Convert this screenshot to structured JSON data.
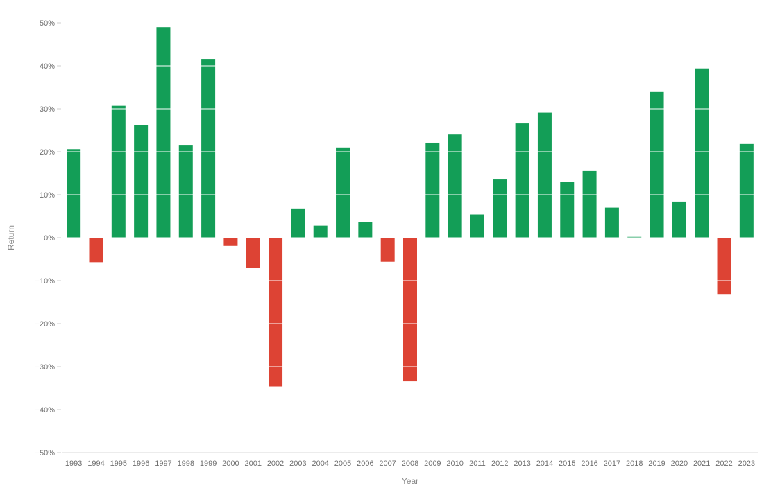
{
  "chart_data": {
    "type": "bar",
    "title": "",
    "xlabel": "Year",
    "ylabel": "Return",
    "ylim": [
      -50,
      50
    ],
    "y_ticks": [
      50,
      40,
      30,
      20,
      10,
      0,
      -10,
      -20,
      -30,
      -40,
      -50
    ],
    "y_tick_labels": [
      "50%",
      "40%",
      "30%",
      "20%",
      "10%",
      "0%",
      "−10%",
      "−20%",
      "−30%",
      "−40%",
      "−50%"
    ],
    "grid": "horizontal, drawn over bars in white",
    "categories": [
      "1993",
      "1994",
      "1995",
      "1996",
      "1997",
      "1998",
      "1999",
      "2000",
      "2001",
      "2002",
      "2003",
      "2004",
      "2005",
      "2006",
      "2007",
      "2008",
      "2009",
      "2010",
      "2011",
      "2012",
      "2013",
      "2014",
      "2015",
      "2016",
      "2017",
      "2018",
      "2019",
      "2020",
      "2021",
      "2022",
      "2023"
    ],
    "values": [
      20.6,
      -5.7,
      30.7,
      26.2,
      49.0,
      21.6,
      41.6,
      -1.9,
      -7.0,
      -34.6,
      6.8,
      2.8,
      21.0,
      3.7,
      -5.6,
      -33.4,
      22.1,
      24.0,
      5.4,
      13.7,
      26.6,
      29.1,
      13.0,
      15.5,
      7.0,
      0.2,
      33.9,
      8.4,
      39.4,
      -13.1,
      21.8
    ],
    "colors": {
      "positive": "#139e57",
      "negative": "#dd4334"
    }
  }
}
